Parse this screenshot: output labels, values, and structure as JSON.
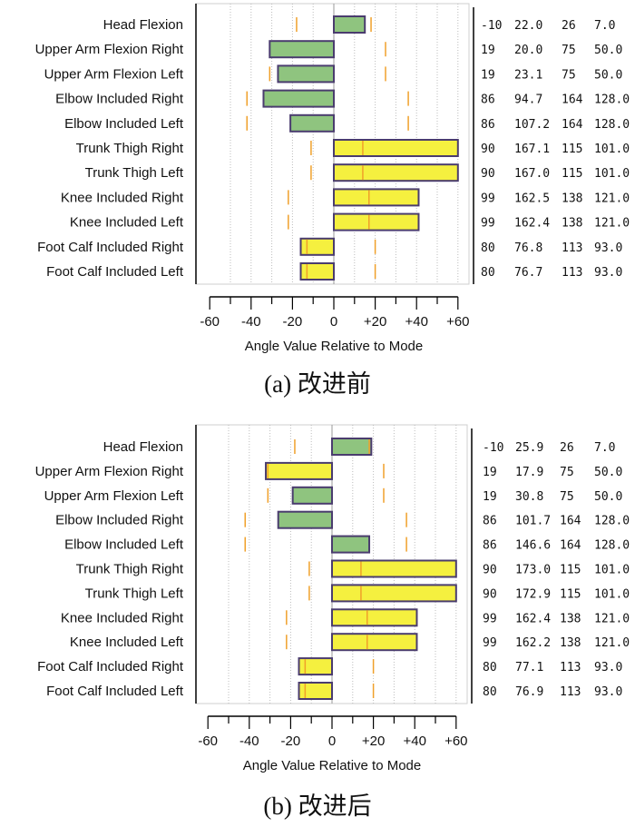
{
  "chart_data": [
    {
      "type": "bar",
      "orientation": "horizontal",
      "caption": "(a)  改进前",
      "xlabel": "Angle Value Relative to Mode",
      "xlim": [
        -60,
        60
      ],
      "xticks": [
        "-60",
        "-40",
        "-20",
        "0",
        "+20",
        "+40",
        "+60"
      ],
      "grid": true,
      "colors": {
        "within_range": "#8fc47f",
        "out_of_range": "#f5f03f",
        "limit_marker": "#f0a02a",
        "bar_border": "#4a3c6e"
      },
      "rows": [
        {
          "label": "Head Flexion",
          "value": 15,
          "low": -18,
          "high": 18,
          "color": "green",
          "cols": [
            "-10",
            "22.0",
            "26",
            "7.0"
          ]
        },
        {
          "label": "Upper Arm Flexion Right",
          "value": -31,
          "low": -31,
          "high": 25,
          "color": "green",
          "cols": [
            "19",
            "20.0",
            "75",
            "50.0"
          ]
        },
        {
          "label": "Upper Arm Flexion Left",
          "value": -27,
          "low": -31,
          "high": 25,
          "color": "green",
          "cols": [
            "19",
            "23.1",
            "75",
            "50.0"
          ]
        },
        {
          "label": "Elbow Included Right",
          "value": -34,
          "low": -42,
          "high": 36,
          "color": "green",
          "cols": [
            "86",
            "94.7",
            "164",
            "128.0"
          ]
        },
        {
          "label": "Elbow Included Left",
          "value": -21,
          "low": -42,
          "high": 36,
          "color": "green",
          "cols": [
            "86",
            "107.2",
            "164",
            "128.0"
          ]
        },
        {
          "label": "Trunk Thigh Right",
          "value": 66,
          "low": -11,
          "high": 14,
          "color": "yellow",
          "cols": [
            "90",
            "167.1",
            "115",
            "101.0"
          ]
        },
        {
          "label": "Trunk Thigh Left",
          "value": 66,
          "low": -11,
          "high": 14,
          "color": "yellow",
          "cols": [
            "90",
            "167.0",
            "115",
            "101.0"
          ]
        },
        {
          "label": "Knee Included Right",
          "value": 41,
          "low": -22,
          "high": 17,
          "color": "yellow",
          "cols": [
            "99",
            "162.5",
            "138",
            "121.0"
          ]
        },
        {
          "label": "Knee Included Left",
          "value": 41,
          "low": -22,
          "high": 17,
          "color": "yellow",
          "cols": [
            "99",
            "162.4",
            "138",
            "121.0"
          ]
        },
        {
          "label": "Foot Calf Included Right",
          "value": -16,
          "low": -13,
          "high": 20,
          "color": "yellow",
          "cols": [
            "80",
            "76.8",
            "113",
            "93.0"
          ]
        },
        {
          "label": "Foot Calf Included Left",
          "value": -16,
          "low": -13,
          "high": 20,
          "color": "yellow",
          "cols": [
            "80",
            "76.7",
            "113",
            "93.0"
          ]
        }
      ]
    },
    {
      "type": "bar",
      "orientation": "horizontal",
      "caption": "(b)  改进后",
      "xlabel": "Angle Value Relative to Mode",
      "xlim": [
        -60,
        60
      ],
      "xticks": [
        "-60",
        "-40",
        "-20",
        "0",
        "+20",
        "+40",
        "+60"
      ],
      "grid": true,
      "colors": {
        "within_range": "#8fc47f",
        "out_of_range": "#f5f03f",
        "limit_marker": "#f0a02a",
        "bar_border": "#4a3c6e"
      },
      "rows": [
        {
          "label": "Head Flexion",
          "value": 19,
          "low": -18,
          "high": 18,
          "color": "green",
          "cols": [
            "-10",
            "25.9",
            "26",
            "7.0"
          ]
        },
        {
          "label": "Upper Arm Flexion Right",
          "value": -32,
          "low": -31,
          "high": 25,
          "color": "yellow",
          "cols": [
            "19",
            "17.9",
            "75",
            "50.0"
          ]
        },
        {
          "label": "Upper Arm Flexion Left",
          "value": -19,
          "low": -31,
          "high": 25,
          "color": "green",
          "cols": [
            "19",
            "30.8",
            "75",
            "50.0"
          ]
        },
        {
          "label": "Elbow Included Right",
          "value": -26,
          "low": -42,
          "high": 36,
          "color": "green",
          "cols": [
            "86",
            "101.7",
            "164",
            "128.0"
          ]
        },
        {
          "label": "Elbow Included Left",
          "value": 18,
          "low": -42,
          "high": 36,
          "color": "green",
          "cols": [
            "86",
            "146.6",
            "164",
            "128.0"
          ]
        },
        {
          "label": "Trunk Thigh Right",
          "value": 72,
          "low": -11,
          "high": 14,
          "color": "yellow",
          "cols": [
            "90",
            "173.0",
            "115",
            "101.0"
          ]
        },
        {
          "label": "Trunk Thigh Left",
          "value": 72,
          "low": -11,
          "high": 14,
          "color": "yellow",
          "cols": [
            "90",
            "172.9",
            "115",
            "101.0"
          ]
        },
        {
          "label": "Knee Included Right",
          "value": 41,
          "low": -22,
          "high": 17,
          "color": "yellow",
          "cols": [
            "99",
            "162.4",
            "138",
            "121.0"
          ]
        },
        {
          "label": "Knee Included Left",
          "value": 41,
          "low": -22,
          "high": 17,
          "color": "yellow",
          "cols": [
            "99",
            "162.2",
            "138",
            "121.0"
          ]
        },
        {
          "label": "Foot Calf Included Right",
          "value": -16,
          "low": -13,
          "high": 20,
          "color": "yellow",
          "cols": [
            "80",
            "77.1",
            "113",
            "93.0"
          ]
        },
        {
          "label": "Foot Calf Included Left",
          "value": -16,
          "low": -13,
          "high": 20,
          "color": "yellow",
          "cols": [
            "80",
            "76.9",
            "113",
            "93.0"
          ]
        }
      ]
    }
  ]
}
